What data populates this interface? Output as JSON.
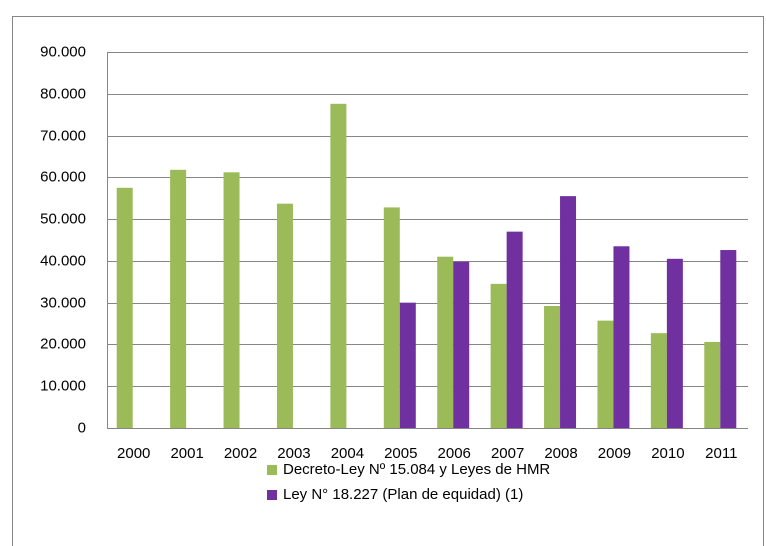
{
  "chart_data": {
    "type": "bar",
    "categories": [
      "2000",
      "2001",
      "2002",
      "2003",
      "2004",
      "2005",
      "2006",
      "2007",
      "2008",
      "2009",
      "2010",
      "2011"
    ],
    "series": [
      {
        "name": "Decreto-Ley Nº 15.084 y Leyes de HMR",
        "color": "#9bbb59",
        "values": [
          57500,
          61800,
          61200,
          53700,
          77600,
          52800,
          41000,
          34500,
          29200,
          25700,
          22700,
          20600
        ]
      },
      {
        "name": "Ley N° 18.227 (Plan de equidad) (1)",
        "color": "#7030a0",
        "values": [
          null,
          null,
          null,
          null,
          null,
          30000,
          39800,
          47000,
          55500,
          43500,
          40500,
          42600
        ]
      }
    ],
    "ylim": [
      0,
      90000
    ],
    "yticks": [
      0,
      {
        "value": 10000,
        "label": "10.000"
      },
      {
        "value": 20000,
        "label": "20.000"
      },
      {
        "value": 30000,
        "label": "30.000"
      },
      {
        "value": 40000,
        "label": "40.000"
      },
      {
        "value": 50000,
        "label": "50.000"
      },
      {
        "value": 60000,
        "label": "60.000"
      },
      {
        "value": 70000,
        "label": "70.000"
      },
      {
        "value": 80000,
        "label": "80.000"
      },
      {
        "value": 90000,
        "label": "90.000"
      }
    ],
    "grid": true,
    "legend": "bottom"
  }
}
